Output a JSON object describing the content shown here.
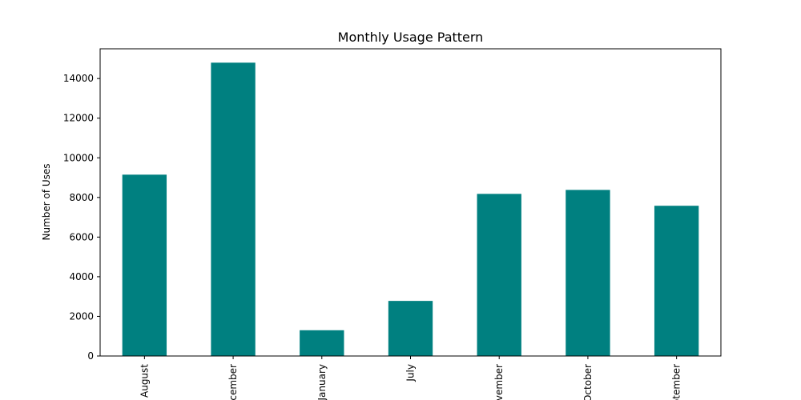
{
  "chart_data": {
    "type": "bar",
    "title": "Monthly Usage Pattern",
    "xlabel": "",
    "ylabel": "Number of Uses",
    "categories": [
      "August",
      "December",
      "January",
      "July",
      "November",
      "October",
      "September"
    ],
    "values": [
      9150,
      14800,
      1300,
      2780,
      8180,
      8380,
      7580
    ],
    "ylim": [
      0,
      15500
    ],
    "yticks": [
      0,
      2000,
      4000,
      6000,
      8000,
      10000,
      12000,
      14000
    ],
    "bar_color": "#008080",
    "grid": false,
    "legend": "none"
  }
}
